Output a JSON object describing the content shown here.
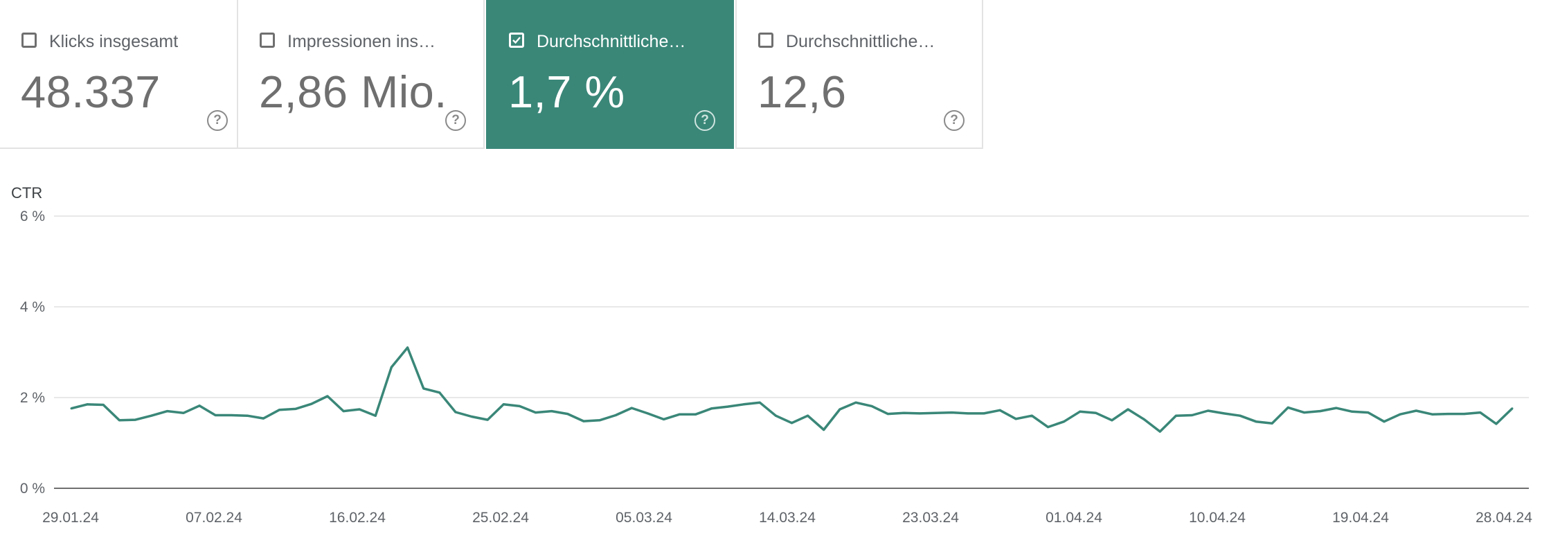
{
  "cards": [
    {
      "label": "Klicks insgesamt",
      "value": "48.337",
      "checked": false
    },
    {
      "label": "Impressionen ins…",
      "value": "2,86 Mio.",
      "checked": false
    },
    {
      "label": "Durchschnittliche…",
      "value": "1,7 %",
      "checked": true
    },
    {
      "label": "Durchschnittliche…",
      "value": "12,6",
      "checked": false
    }
  ],
  "help_glyph": "?",
  "colors": {
    "accent": "#3a8778",
    "line": "#3a8778",
    "grid": "#e8e8e8"
  },
  "chart_data": {
    "type": "line",
    "ylabel": "CTR",
    "ylim": [
      0,
      6
    ],
    "y_ticks": [
      "0 %",
      "2 %",
      "4 %",
      "6 %"
    ],
    "x_tick_labels": [
      "29.01.24",
      "07.02.24",
      "16.02.24",
      "25.02.24",
      "05.03.24",
      "14.03.24",
      "23.03.24",
      "01.04.24",
      "10.04.24",
      "19.04.24",
      "28.04.24"
    ],
    "series": [
      {
        "values": [
          1.76,
          1.85,
          1.84,
          1.5,
          1.51,
          1.6,
          1.7,
          1.66,
          1.82,
          1.61,
          1.61,
          1.6,
          1.54,
          1.73,
          1.75,
          1.86,
          2.03,
          1.7,
          1.74,
          1.6,
          2.67,
          3.1,
          2.2,
          2.11,
          1.68,
          1.58,
          1.51,
          1.85,
          1.81,
          1.67,
          1.7,
          1.64,
          1.48,
          1.5,
          1.61,
          1.77,
          1.65,
          1.52,
          1.63,
          1.63,
          1.76,
          1.8,
          1.85,
          1.89,
          1.6,
          1.44,
          1.6,
          1.29,
          1.74,
          1.89,
          1.81,
          1.64,
          1.66,
          1.65,
          1.66,
          1.67,
          1.65,
          1.65,
          1.72,
          1.53,
          1.6,
          1.35,
          1.47,
          1.69,
          1.66,
          1.5,
          1.74,
          1.52,
          1.25,
          1.6,
          1.61,
          1.71,
          1.65,
          1.6,
          1.47,
          1.43,
          1.78,
          1.67,
          1.7,
          1.77,
          1.69,
          1.67,
          1.47,
          1.63,
          1.71,
          1.63,
          1.64,
          1.64,
          1.67,
          1.42,
          1.76
        ]
      }
    ]
  }
}
